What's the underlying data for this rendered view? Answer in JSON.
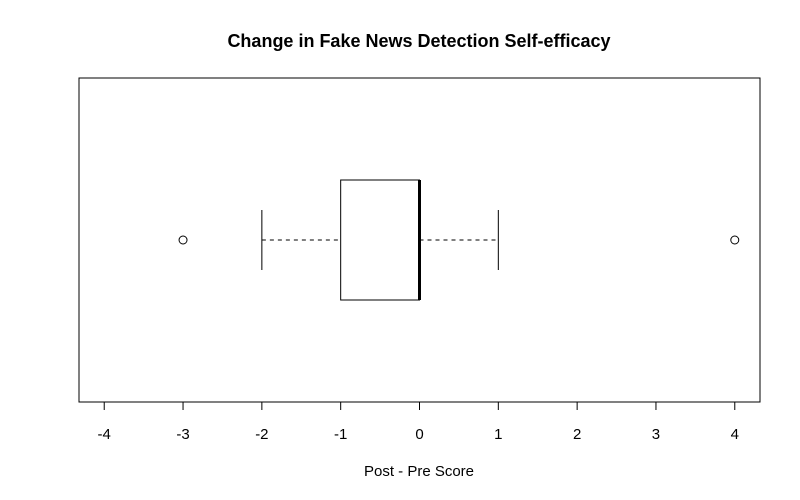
{
  "chart_data": {
    "type": "boxplot",
    "orientation": "horizontal",
    "title": "Change in Fake News Detection Self-efficacy",
    "xlabel": "Post - Pre Score",
    "ylabel": "",
    "xlim": [
      -4.32,
      4.32
    ],
    "x_ticks": [
      -4,
      -3,
      -2,
      -1,
      0,
      1,
      2,
      3,
      4
    ],
    "x_tick_labels": [
      "-4",
      "-3",
      "-2",
      "-1",
      "0",
      "1",
      "2",
      "3",
      "4"
    ],
    "box": {
      "whisker_low": -2,
      "q1": -1,
      "median": 0,
      "q3": 0,
      "whisker_high": 1,
      "outliers": [
        -3,
        4
      ]
    },
    "grid": false,
    "legend": "none"
  }
}
